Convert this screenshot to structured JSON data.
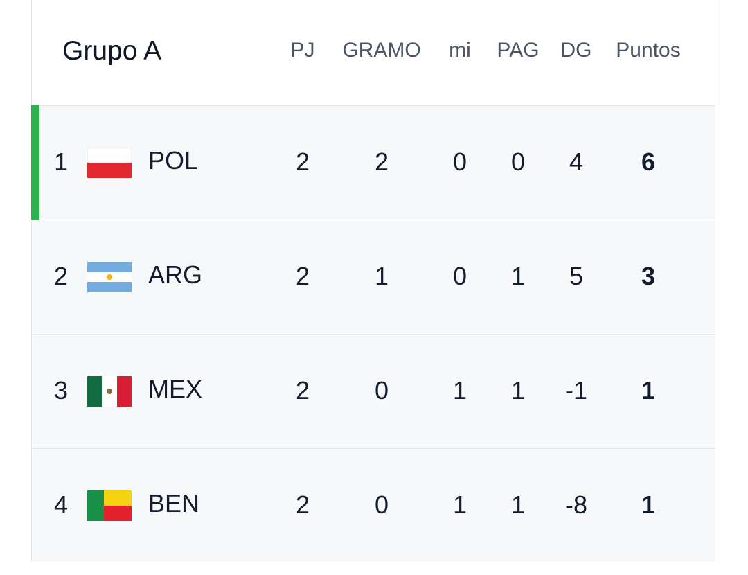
{
  "header": {
    "title": "Grupo A",
    "columns": [
      "PJ",
      "GRAMO",
      "mi",
      "PAG",
      "DG",
      "Puntos"
    ]
  },
  "table": {
    "rows": [
      {
        "rank": 1,
        "team": "POL",
        "stats": [
          2,
          2,
          0,
          0,
          4,
          6
        ]
      },
      {
        "rank": 2,
        "team": "ARG",
        "stats": [
          2,
          1,
          0,
          1,
          5,
          3
        ]
      },
      {
        "rank": 3,
        "team": "MEX",
        "stats": [
          2,
          0,
          1,
          1,
          -1,
          1
        ]
      },
      {
        "rank": 4,
        "team": "BEN",
        "stats": [
          2,
          0,
          1,
          1,
          -8,
          1
        ]
      }
    ]
  }
}
